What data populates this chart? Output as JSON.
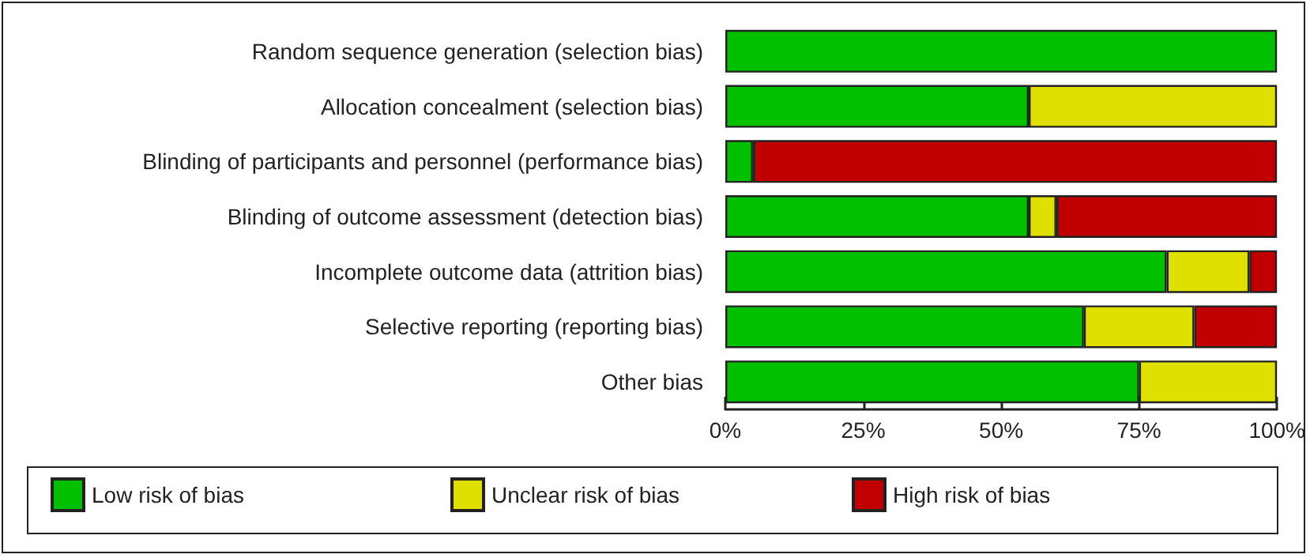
{
  "chart_data": {
    "type": "bar",
    "orientation": "horizontal",
    "stacked": true,
    "grid": false,
    "legend": "bottom",
    "categories": [
      "Random sequence generation (selection bias)",
      "Allocation concealment (selection bias)",
      "Blinding of participants and personnel (performance bias)",
      "Blinding of outcome assessment (detection bias)",
      "Incomplete outcome data (attrition bias)",
      "Selective reporting (reporting bias)",
      "Other bias"
    ],
    "series": [
      {
        "name": "Low risk of bias",
        "color": "#00c000",
        "values": [
          100,
          55,
          5,
          55,
          80,
          65,
          75
        ]
      },
      {
        "name": "Unclear risk of bias",
        "color": "#e0e000",
        "values": [
          0,
          45,
          0,
          5,
          15,
          20,
          25
        ]
      },
      {
        "name": "High risk of bias",
        "color": "#c00000",
        "values": [
          0,
          0,
          95,
          40,
          5,
          15,
          0
        ]
      }
    ],
    "xlim": [
      0,
      100
    ],
    "xticks": [
      {
        "value": 0,
        "label": "0%"
      },
      {
        "value": 25,
        "label": "25%"
      },
      {
        "value": 50,
        "label": "50%"
      },
      {
        "value": 75,
        "label": "75%"
      },
      {
        "value": 100,
        "label": "100%"
      }
    ]
  }
}
